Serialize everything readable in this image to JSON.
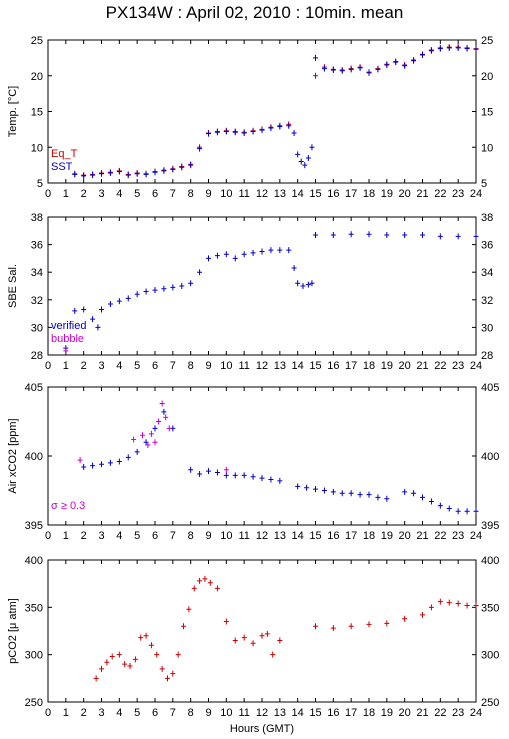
{
  "title": "PX134W : April 02, 2010 : 10min. mean",
  "chart_data": [
    {
      "type": "scatter",
      "ylabel": "Temp. [°C]",
      "xlim": [
        0,
        24
      ],
      "ylim": [
        5,
        25
      ],
      "yticks": [
        5,
        10,
        15,
        20,
        25
      ],
      "xticks": [
        0,
        1,
        2,
        3,
        4,
        5,
        6,
        7,
        8,
        9,
        10,
        11,
        12,
        13,
        14,
        15,
        16,
        17,
        18,
        19,
        20,
        21,
        22,
        23,
        24
      ],
      "legend": [
        "Eq_T",
        "SST"
      ],
      "legend_colors": [
        "#cc0000",
        "#0000cc"
      ],
      "series": [
        {
          "name": "Eq_T",
          "color": "#cc0000",
          "x": [
            1.5,
            2.0,
            2.5,
            3.0,
            3.5,
            4.0,
            4.5,
            5.0,
            5.5,
            6.0,
            6.5,
            7.0,
            7.5,
            8.0,
            8.5,
            9.0,
            9.5,
            10.0,
            10.5,
            11.0,
            11.5,
            12.0,
            12.5,
            13.0,
            13.5,
            15.0,
            15.5,
            16.0,
            16.5,
            17.0,
            17.5,
            18.0,
            18.5,
            19.0,
            19.5,
            20.0,
            20.5,
            21.0,
            21.5,
            22.0,
            22.5,
            23.0,
            23.5,
            24.0
          ],
          "y": [
            6.3,
            6.1,
            6.2,
            6.4,
            6.5,
            6.7,
            6.2,
            6.4,
            6.3,
            6.6,
            6.8,
            7.0,
            7.3,
            7.6,
            10.0,
            12.0,
            12.2,
            12.3,
            12.2,
            12.1,
            12.3,
            12.5,
            12.8,
            13.0,
            13.2,
            20.0,
            21.2,
            20.9,
            20.8,
            21.0,
            21.2,
            20.5,
            21.0,
            21.6,
            22.0,
            21.5,
            22.2,
            23.0,
            23.6,
            23.9,
            24.0,
            24.0,
            23.9,
            23.8
          ]
        },
        {
          "name": "SST",
          "color": "#0000cc",
          "x": [
            1.5,
            2.0,
            2.5,
            3.0,
            3.5,
            4.0,
            4.5,
            5.0,
            5.5,
            6.0,
            6.5,
            7.0,
            7.5,
            8.0,
            8.5,
            9.0,
            9.5,
            10.0,
            10.5,
            11.0,
            11.5,
            12.0,
            12.5,
            13.0,
            13.5,
            13.8,
            14.0,
            14.2,
            14.4,
            14.6,
            14.8,
            15.0,
            15.5,
            16.0,
            16.5,
            17.0,
            17.5,
            18.0,
            18.5,
            19.0,
            19.5,
            20.0,
            20.5,
            21.0,
            21.5,
            22.0,
            22.5,
            23.0,
            23.5,
            24.0
          ],
          "y": [
            6.2,
            6.0,
            6.1,
            6.3,
            6.4,
            6.6,
            6.1,
            6.3,
            6.2,
            6.5,
            6.7,
            6.9,
            7.2,
            7.5,
            9.8,
            11.9,
            12.1,
            12.2,
            12.1,
            12.0,
            12.2,
            12.4,
            12.7,
            12.9,
            13.0,
            12.0,
            9.0,
            8.0,
            7.5,
            8.5,
            10.0,
            22.5,
            21.0,
            20.8,
            20.7,
            20.9,
            21.1,
            20.4,
            20.9,
            21.5,
            21.9,
            21.4,
            22.1,
            22.9,
            23.5,
            23.8,
            23.9,
            23.9,
            23.8,
            23.7
          ]
        }
      ]
    },
    {
      "type": "scatter",
      "ylabel": "SBE Sal.",
      "xlim": [
        0,
        24
      ],
      "ylim": [
        28,
        38
      ],
      "yticks": [
        28,
        30,
        32,
        34,
        36,
        38
      ],
      "xticks": [
        0,
        1,
        2,
        3,
        4,
        5,
        6,
        7,
        8,
        9,
        10,
        11,
        12,
        13,
        14,
        15,
        16,
        17,
        18,
        19,
        20,
        21,
        22,
        23,
        24
      ],
      "legend": [
        "verified",
        "bubble"
      ],
      "legend_colors": [
        "#0000cc",
        "#cc00cc"
      ],
      "series": [
        {
          "name": "verified",
          "color": "#0000cc",
          "x": [
            1.0,
            1.5,
            2.0,
            2.5,
            2.8,
            3.0,
            3.5,
            4.0,
            4.5,
            5.0,
            5.5,
            6.0,
            6.5,
            7.0,
            7.5,
            8.0,
            8.5,
            9.0,
            9.5,
            10.0,
            10.5,
            11.0,
            11.5,
            12.0,
            12.5,
            13.0,
            13.5,
            13.8,
            14.0,
            14.3,
            14.6,
            14.8,
            15.0,
            16.0,
            17.0,
            18.0,
            19.0,
            20.0,
            21.0,
            22.0,
            23.0,
            24.0
          ],
          "y": [
            28.5,
            31.2,
            31.3,
            30.6,
            30.0,
            31.3,
            31.7,
            31.9,
            32.1,
            32.4,
            32.6,
            32.7,
            32.8,
            32.9,
            33.0,
            33.2,
            34.0,
            35.0,
            35.2,
            35.3,
            35.0,
            35.3,
            35.4,
            35.5,
            35.6,
            35.6,
            35.6,
            34.3,
            33.2,
            33.0,
            33.1,
            33.2,
            36.7,
            36.7,
            36.75,
            36.75,
            36.7,
            36.7,
            36.7,
            36.6,
            36.6,
            36.6
          ]
        },
        {
          "name": "bubble",
          "color": "#cc00cc",
          "x": [
            1.0
          ],
          "y": [
            28.3
          ]
        }
      ]
    },
    {
      "type": "scatter",
      "ylabel": "Air xCO2 [ppm]",
      "xlim": [
        0,
        24
      ],
      "ylim": [
        395,
        405
      ],
      "yticks": [
        395,
        400,
        405
      ],
      "xticks": [
        0,
        1,
        2,
        3,
        4,
        5,
        6,
        7,
        8,
        9,
        10,
        11,
        12,
        13,
        14,
        15,
        16,
        17,
        18,
        19,
        20,
        21,
        22,
        23,
        24
      ],
      "annotation": "σ ≥ 0.3",
      "series": [
        {
          "name": "xCO2",
          "color": "#0000cc",
          "x": [
            2.0,
            2.5,
            3.0,
            3.5,
            4.0,
            4.5,
            5.0,
            5.5,
            6.0,
            6.5,
            7.0,
            8.0,
            8.5,
            9.0,
            9.5,
            10.0,
            10.5,
            11.0,
            11.5,
            12.0,
            12.5,
            13.0,
            14.0,
            14.5,
            15.0,
            15.5,
            16.0,
            16.5,
            17.0,
            17.5,
            18.0,
            18.5,
            19.0,
            20.0,
            20.5,
            21.0,
            21.5,
            22.0,
            22.5,
            23.0,
            23.5,
            24.0
          ],
          "y": [
            399.2,
            399.3,
            399.4,
            399.5,
            399.6,
            399.9,
            400.3,
            401.0,
            402.0,
            403.2,
            402.0,
            399.0,
            398.7,
            398.9,
            398.8,
            398.6,
            398.6,
            398.6,
            398.5,
            398.4,
            398.3,
            398.2,
            397.8,
            397.7,
            397.6,
            397.5,
            397.4,
            397.3,
            397.3,
            397.2,
            397.2,
            397.0,
            396.9,
            397.4,
            397.3,
            397.0,
            396.7,
            396.4,
            396.2,
            396.0,
            396.0,
            396.0
          ]
        },
        {
          "name": "σ ≥ 0.3",
          "color": "#cc00cc",
          "x": [
            1.8,
            4.8,
            5.3,
            5.6,
            5.8,
            6.0,
            6.2,
            6.4,
            6.6,
            6.8,
            10.0
          ],
          "y": [
            399.7,
            401.2,
            401.5,
            400.8,
            401.6,
            401.0,
            402.5,
            403.8,
            402.8,
            402.0,
            399.0
          ]
        }
      ]
    },
    {
      "type": "scatter",
      "ylabel": "pCO2 [μ atm]",
      "xlabel": "Hours (GMT)",
      "xlim": [
        0,
        24
      ],
      "ylim": [
        250,
        400
      ],
      "yticks": [
        250,
        300,
        350,
        400
      ],
      "xticks": [
        0,
        1,
        2,
        3,
        4,
        5,
        6,
        7,
        8,
        9,
        10,
        11,
        12,
        13,
        14,
        15,
        16,
        17,
        18,
        19,
        20,
        21,
        22,
        23,
        24
      ],
      "series": [
        {
          "name": "pCO2",
          "color": "#cc0000",
          "x": [
            2.7,
            3.0,
            3.3,
            3.6,
            4.0,
            4.3,
            4.6,
            4.9,
            5.2,
            5.5,
            5.8,
            6.1,
            6.4,
            6.7,
            7.0,
            7.3,
            7.6,
            7.9,
            8.2,
            8.5,
            8.8,
            9.1,
            9.5,
            10.0,
            10.5,
            11.0,
            11.5,
            12.0,
            12.3,
            12.6,
            13.0,
            15.0,
            16.0,
            17.0,
            18.0,
            19.0,
            20.0,
            21.0,
            21.5,
            22.0,
            22.5,
            23.0,
            23.5,
            24.0
          ],
          "y": [
            275,
            285,
            292,
            298,
            300,
            290,
            288,
            295,
            318,
            320,
            310,
            300,
            285,
            275,
            280,
            300,
            330,
            348,
            370,
            378,
            380,
            376,
            370,
            335,
            315,
            318,
            312,
            320,
            322,
            300,
            315,
            330,
            328,
            330,
            332,
            333,
            338,
            342,
            350,
            356,
            355,
            354,
            352,
            352
          ]
        }
      ]
    }
  ]
}
